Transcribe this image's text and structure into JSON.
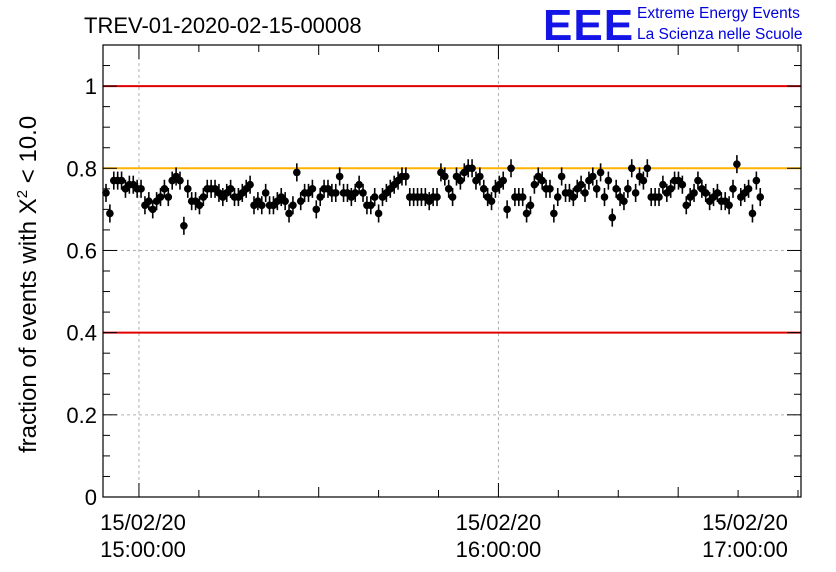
{
  "chart_data": {
    "type": "scatter",
    "title": "TREV-01-2020-02-15-00008",
    "ylabel_prefix": "fraction of events with X",
    "ylabel_sup": "2",
    "ylabel_suffix": " < 10.0",
    "xlabel": "",
    "ylim": [
      0,
      1.1
    ],
    "y_ticks": [
      "0",
      "0.2",
      "0.4",
      "0.6",
      "0.8",
      "1"
    ],
    "y_tick_values": [
      0,
      0.2,
      0.4,
      0.6,
      0.8,
      1.0
    ],
    "x_range_minutes": [
      -6,
      110.5
    ],
    "x_tick_labels": [
      {
        "minute": 0,
        "date": "15/02/20",
        "time": "15:00:00"
      },
      {
        "minute": 60,
        "date": "15/02/20",
        "time": "16:00:00"
      },
      {
        "minute": 120,
        "date": "15/02/20",
        "time": "17:00:00"
      }
    ],
    "x_origin_time": "15/02/20 15:00:00",
    "grid": true,
    "reference_lines": [
      {
        "y": 1.0,
        "color": "#e00000"
      },
      {
        "y": 0.8,
        "color": "#ffb300"
      },
      {
        "y": 0.4,
        "color": "#e00000"
      }
    ],
    "marker_color": "#000000",
    "error": 0.022,
    "points_minutes_step": 0.5,
    "values": [
      0.74,
      0.69,
      0.77,
      0.77,
      0.77,
      0.75,
      0.76,
      0.76,
      0.75,
      0.75,
      0.71,
      0.72,
      0.7,
      0.72,
      0.73,
      0.75,
      0.73,
      0.77,
      0.78,
      0.77,
      0.66,
      0.75,
      0.72,
      0.72,
      0.71,
      0.73,
      0.75,
      0.75,
      0.75,
      0.74,
      0.73,
      0.74,
      0.75,
      0.73,
      0.73,
      0.74,
      0.75,
      0.76,
      0.71,
      0.72,
      0.71,
      0.74,
      0.71,
      0.71,
      0.72,
      0.73,
      0.72,
      0.69,
      0.71,
      0.79,
      0.72,
      0.74,
      0.74,
      0.75,
      0.7,
      0.73,
      0.75,
      0.75,
      0.74,
      0.74,
      0.78,
      0.74,
      0.74,
      0.73,
      0.74,
      0.76,
      0.74,
      0.71,
      0.71,
      0.73,
      0.69,
      0.73,
      0.74,
      0.75,
      0.76,
      0.77,
      0.78,
      0.78,
      0.73,
      0.73,
      0.73,
      0.73,
      0.73,
      0.72,
      0.73,
      0.73,
      0.79,
      0.78,
      0.75,
      0.73,
      0.78,
      0.77,
      0.79,
      0.8,
      0.8,
      0.77,
      0.78,
      0.75,
      0.73,
      0.72,
      0.75,
      0.76,
      0.77,
      0.7,
      0.8,
      0.73,
      0.73,
      0.73,
      0.69,
      0.71,
      0.76,
      0.78,
      0.77,
      0.75,
      0.75,
      0.69,
      0.73,
      0.78,
      0.74,
      0.74,
      0.73,
      0.75,
      0.76,
      0.74,
      0.77,
      0.78,
      0.75,
      0.79,
      0.73,
      0.77,
      0.68,
      0.75,
      0.73,
      0.72,
      0.75,
      0.8,
      0.74,
      0.78,
      0.77,
      0.8,
      0.73,
      0.73,
      0.73,
      0.76,
      0.74,
      0.75,
      0.77,
      0.77,
      0.76,
      0.71,
      0.73,
      0.74,
      0.77,
      0.75,
      0.74,
      0.72,
      0.73,
      0.74,
      0.72,
      0.72,
      0.71,
      0.75,
      0.81,
      0.73,
      0.74,
      0.75,
      0.69,
      0.77,
      0.73
    ]
  },
  "logo": {
    "mark": "EEE",
    "line1": "Extreme Energy Events",
    "line2": "La Scienza nelle Scuole"
  }
}
